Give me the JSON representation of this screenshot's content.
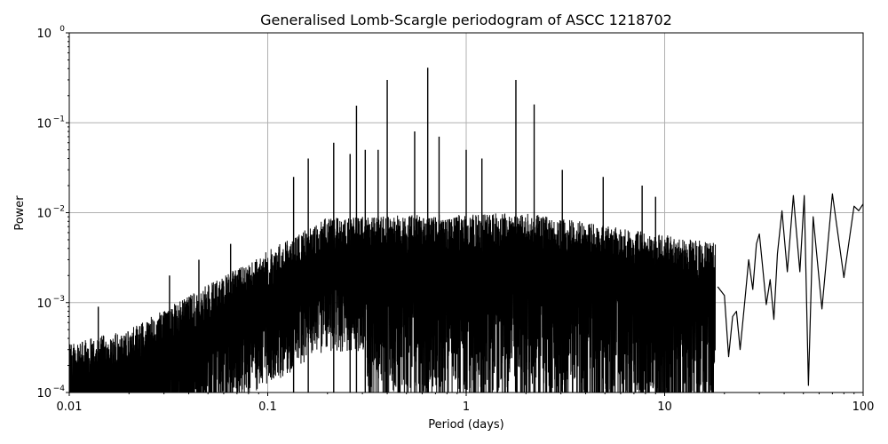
{
  "chart_data": {
    "type": "line",
    "title": "Generalised Lomb-Scargle periodogram of ASCC 1218702",
    "xlabel": "Period (days)",
    "ylabel": "Power",
    "xscale": "log",
    "yscale": "log",
    "xlim": [
      0.01,
      100
    ],
    "ylim": [
      0.0001,
      1
    ],
    "grid": true,
    "xticks": [
      {
        "value": 0.01,
        "label": "0.01"
      },
      {
        "value": 0.1,
        "label": "0.1"
      },
      {
        "value": 1,
        "label": "1"
      },
      {
        "value": 10,
        "label": "10"
      },
      {
        "value": 100,
        "label": "100"
      }
    ],
    "yticks": [
      {
        "value": 0.0001,
        "base": "10",
        "exp": "−4"
      },
      {
        "value": 0.001,
        "base": "10",
        "exp": "−3"
      },
      {
        "value": 0.01,
        "base": "10",
        "exp": "−2"
      },
      {
        "value": 0.1,
        "base": "10",
        "exp": "−1"
      },
      {
        "value": 1,
        "base": "10",
        "exp": "0"
      }
    ],
    "line_color": "#000000",
    "series": [
      {
        "peaks": [
          {
            "x": 0.28,
            "y": 0.155
          },
          {
            "x": 0.4,
            "y": 0.3
          },
          {
            "x": 0.64,
            "y": 0.41
          },
          {
            "x": 1.78,
            "y": 0.3
          },
          {
            "x": 2.2,
            "y": 0.16
          },
          {
            "x": 0.215,
            "y": 0.06
          },
          {
            "x": 0.26,
            "y": 0.045
          },
          {
            "x": 0.55,
            "y": 0.08
          },
          {
            "x": 0.73,
            "y": 0.07
          },
          {
            "x": 1.0,
            "y": 0.05
          },
          {
            "x": 1.2,
            "y": 0.04
          },
          {
            "x": 3.05,
            "y": 0.03
          },
          {
            "x": 0.31,
            "y": 0.05
          },
          {
            "x": 0.36,
            "y": 0.05
          },
          {
            "x": 0.135,
            "y": 0.025
          },
          {
            "x": 0.16,
            "y": 0.04
          },
          {
            "x": 0.065,
            "y": 0.0045
          },
          {
            "x": 0.032,
            "y": 0.002
          },
          {
            "x": 0.045,
            "y": 0.003
          },
          {
            "x": 0.014,
            "y": 0.0009
          },
          {
            "x": 4.9,
            "y": 0.025
          },
          {
            "x": 7.7,
            "y": 0.02
          },
          {
            "x": 9.0,
            "y": 0.015
          }
        ],
        "tail": [
          {
            "x": 18.5,
            "y": 0.0015
          },
          {
            "x": 20.0,
            "y": 0.0012
          },
          {
            "x": 21.0,
            "y": 0.00025
          },
          {
            "x": 22.0,
            "y": 0.0007
          },
          {
            "x": 23.0,
            "y": 0.0008
          },
          {
            "x": 24.0,
            "y": 0.0003
          },
          {
            "x": 25.5,
            "y": 0.0012
          },
          {
            "x": 26.5,
            "y": 0.003
          },
          {
            "x": 27.8,
            "y": 0.0014
          },
          {
            "x": 29.0,
            "y": 0.0045
          },
          {
            "x": 30.0,
            "y": 0.0058
          },
          {
            "x": 31.0,
            "y": 0.0028
          },
          {
            "x": 32.5,
            "y": 0.00095
          },
          {
            "x": 34.0,
            "y": 0.0018
          },
          {
            "x": 35.5,
            "y": 0.00065
          },
          {
            "x": 37.0,
            "y": 0.0035
          },
          {
            "x": 39.0,
            "y": 0.0105
          },
          {
            "x": 41.5,
            "y": 0.0022
          },
          {
            "x": 44.5,
            "y": 0.0155
          },
          {
            "x": 48.0,
            "y": 0.0022
          },
          {
            "x": 50.5,
            "y": 0.0155
          },
          {
            "x": 53.0,
            "y": 0.00012
          },
          {
            "x": 56.0,
            "y": 0.009
          },
          {
            "x": 62.0,
            "y": 0.00085
          },
          {
            "x": 70.0,
            "y": 0.0162
          },
          {
            "x": 80.0,
            "y": 0.0019
          },
          {
            "x": 90.0,
            "y": 0.0118
          },
          {
            "x": 95.0,
            "y": 0.0105
          },
          {
            "x": 100.0,
            "y": 0.0125
          }
        ]
      }
    ]
  }
}
